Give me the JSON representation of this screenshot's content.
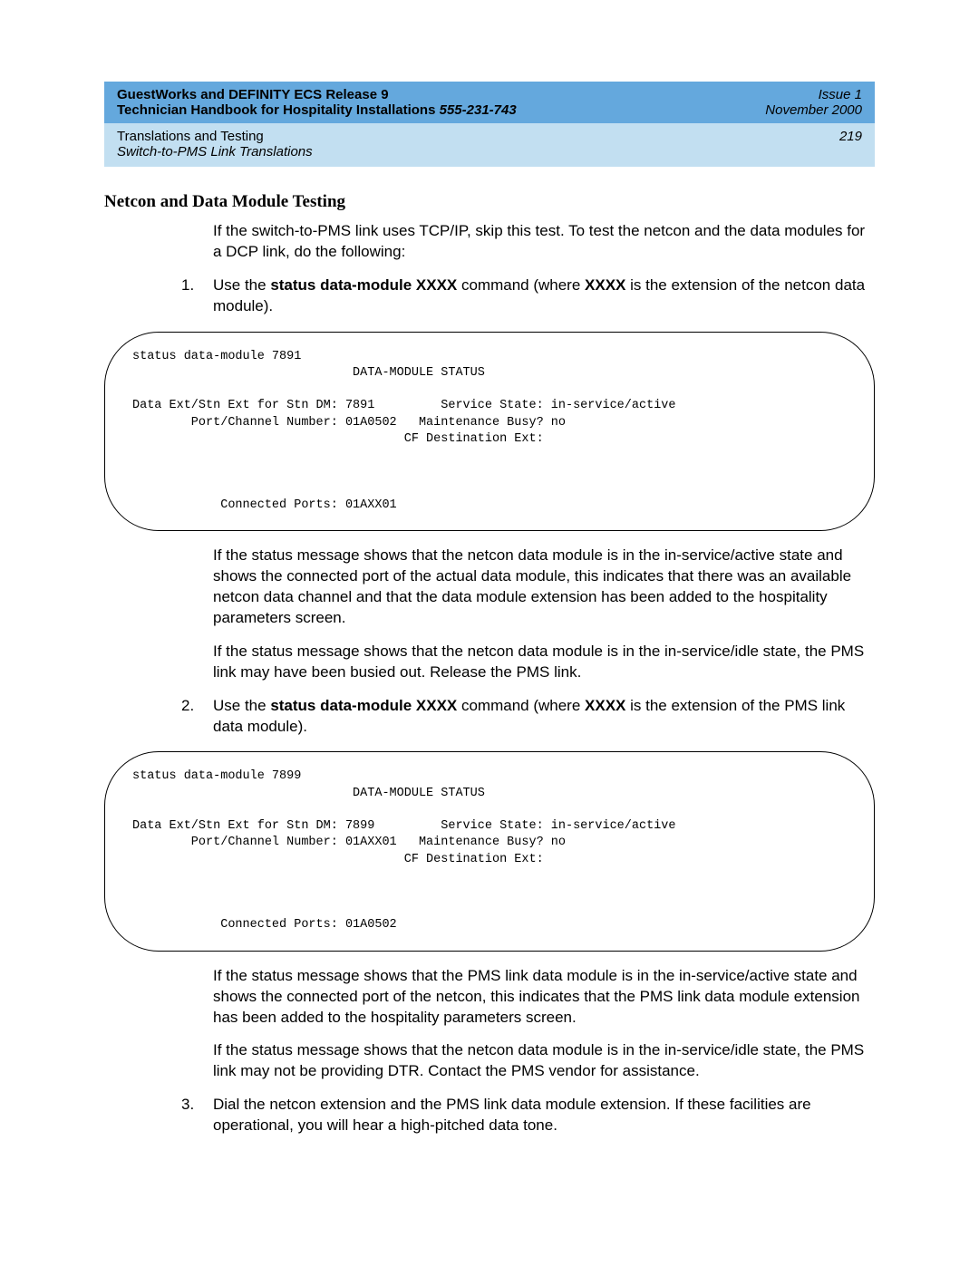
{
  "header": {
    "title_l1": "GuestWorks and DEFINITY ECS Release 9",
    "title_l2a": "Technician Handbook for Hospitality Installations  ",
    "title_l2b": "555-231-743",
    "issue": "Issue 1",
    "date": "November 2000",
    "chapter": "Translations and Testing",
    "section": "Switch-to-PMS Link Translations",
    "page_num": "219"
  },
  "section_title": "Netcon and Data Module Testing",
  "intro": "If the switch-to-PMS link uses TCP/IP, skip this test. To test the netcon and the data modules for a DCP link, do the following:",
  "steps": {
    "s1": {
      "num": "1.",
      "pre": "Use the ",
      "cmd": "status data-module XXXX",
      "mid": " command (where ",
      "arg": "XXXX",
      "post": " is the extension of the netcon data module)."
    },
    "s2": {
      "num": "2.",
      "pre": "Use the ",
      "cmd": "status data-module XXXX",
      "mid": " command (where ",
      "arg": "XXXX",
      "post": " is the extension of the PMS link data module)."
    },
    "s3": {
      "num": "3.",
      "text": "Dial the netcon extension and the PMS link data module extension. If these facilities are operational, you will hear a high-pitched data tone."
    }
  },
  "terminal1": "status data-module 7891\n                              DATA-MODULE STATUS\n\nData Ext/Stn Ext for Stn DM: 7891         Service State: in-service/active\n        Port/Channel Number: 01A0502   Maintenance Busy? no\n                                     CF Destination Ext:\n\n\n\n            Connected Ports: 01AXX01",
  "para1a": "If the status message shows that the netcon data module is in the in-service/active state and shows the connected port of the actual data module, this indicates that there was an available netcon data channel and that the data module extension has been added to the hospitality parameters screen.",
  "para1b": "If the status message shows that the netcon data module is in the in-service/idle state, the PMS link may have been busied out. Release the PMS link.",
  "terminal2": "status data-module 7899\n                              DATA-MODULE STATUS\n\nData Ext/Stn Ext for Stn DM: 7899         Service State: in-service/active\n        Port/Channel Number: 01AXX01   Maintenance Busy? no\n                                     CF Destination Ext:\n\n\n\n            Connected Ports: 01A0502",
  "para2a": "If the status message shows that the PMS link data module is in the in-service/active state and shows the connected port of the netcon, this indicates that the PMS link data module extension has been added to the hospitality parameters screen.",
  "para2b": "If the status message shows that the netcon data module is in the in-service/idle state, the PMS link may not be providing DTR. Contact the PMS vendor for assistance."
}
